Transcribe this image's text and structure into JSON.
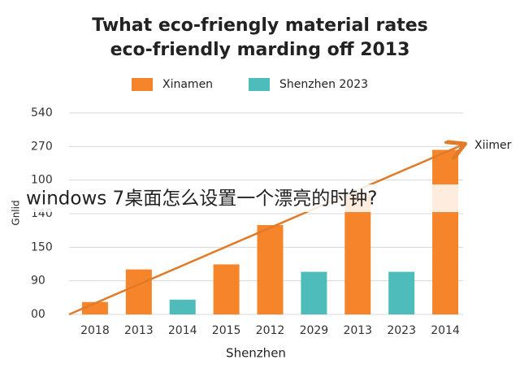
{
  "chart_data": {
    "type": "bar",
    "title_lines": [
      "Twhat eco-friengly material rates",
      "eco-friendly marding off 2013"
    ],
    "x_label": "Shenzhen",
    "y_label": "Gnlid",
    "annotation": "Xiimer",
    "overlay_text": "windows 7桌面怎么设置一个漂亮的时钟?",
    "categories": [
      "2018",
      "2013",
      "2014",
      "2015",
      "2012",
      "2029",
      "2013",
      "2023",
      "2014"
    ],
    "series": [
      {
        "name": "Xinamen",
        "color": "#f5842a",
        "values": [
          0.37,
          1.34,
          null,
          1.49,
          2.66,
          null,
          3.6,
          null,
          4.9
        ]
      },
      {
        "name": "Shenzhen 2023",
        "color": "#4fbcbc",
        "values": [
          null,
          null,
          0.44,
          null,
          null,
          1.27,
          null,
          1.27,
          null
        ]
      }
    ],
    "ylim": [
      0,
      6
    ],
    "yticks": [
      {
        "value": 0,
        "label": "00"
      },
      {
        "value": 1,
        "label": "90"
      },
      {
        "value": 2,
        "label": "150"
      },
      {
        "value": 3,
        "label": "140"
      },
      {
        "value": 4,
        "label": "100"
      },
      {
        "value": 5,
        "label": "270"
      },
      {
        "value": 6,
        "label": "540"
      }
    ],
    "grid": true
  }
}
